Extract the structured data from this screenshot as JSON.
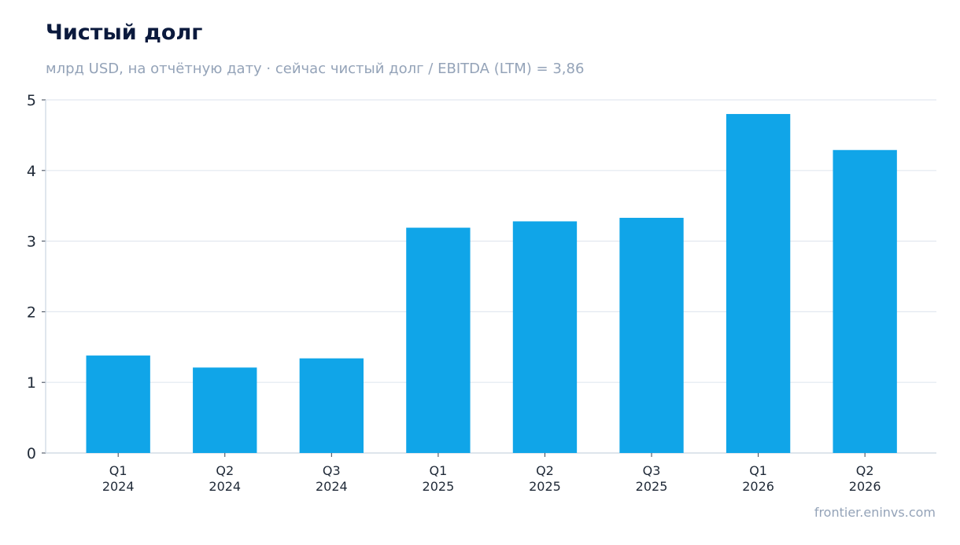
{
  "header": {
    "title": "Чистый долг",
    "subtitle": "млрд USD, на отчётную дату · сейчас чистый долг / EBITDA (LTM) = 3,86"
  },
  "footer": {
    "source": "frontier.eninvs.com"
  },
  "colors": {
    "bar": "#10a5e8",
    "grid": "#e2e8f0",
    "axis": "#cbd5e1"
  },
  "chart_data": {
    "type": "bar",
    "categories": [
      [
        "Q1",
        "2024"
      ],
      [
        "Q2",
        "2024"
      ],
      [
        "Q3",
        "2024"
      ],
      [
        "Q1",
        "2025"
      ],
      [
        "Q2",
        "2025"
      ],
      [
        "Q3",
        "2025"
      ],
      [
        "Q1",
        "2026"
      ],
      [
        "Q2",
        "2026"
      ]
    ],
    "values": [
      1.38,
      1.21,
      1.34,
      3.19,
      3.28,
      3.33,
      4.8,
      4.29
    ],
    "ylim": [
      0,
      5
    ],
    "yticks": [
      0,
      1,
      2,
      3,
      4,
      5
    ],
    "grid": true
  }
}
